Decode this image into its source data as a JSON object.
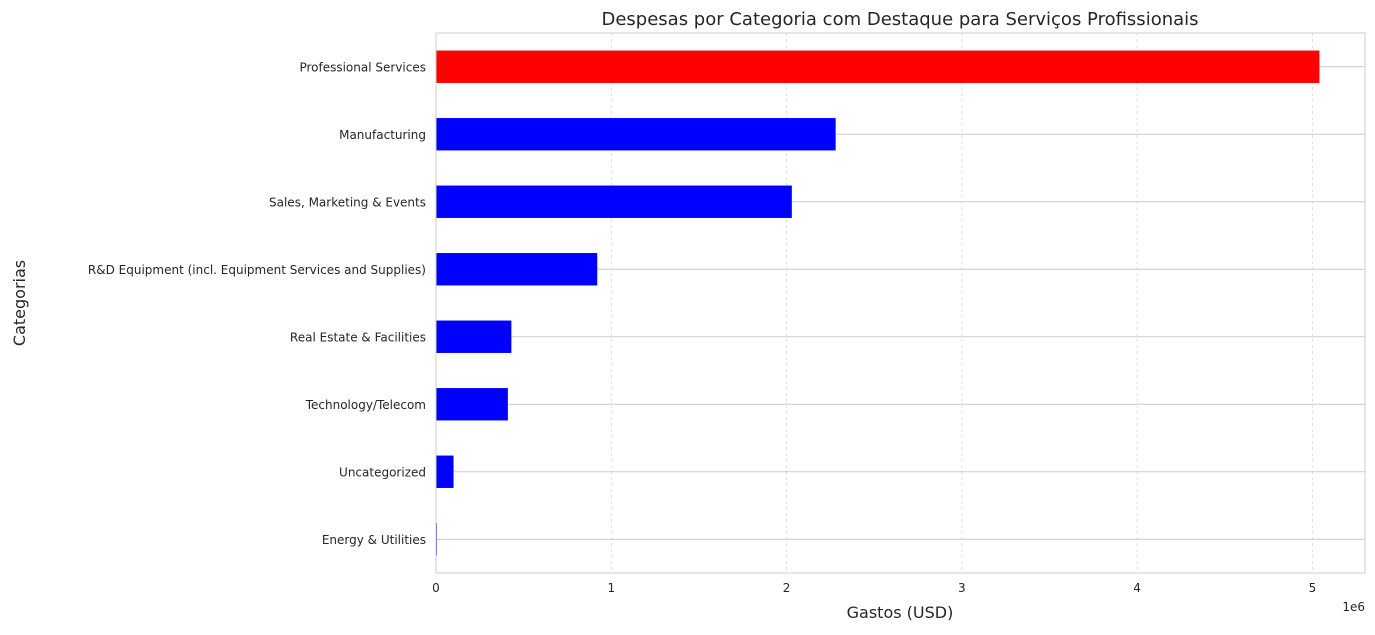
{
  "chart_data": {
    "type": "bar",
    "orientation": "horizontal",
    "title": "Despesas por Categoria com Destaque para Serviços Profissionais",
    "xlabel": "Gastos (USD)",
    "ylabel": "Categorias",
    "x_offset_label": "1e6",
    "xlim": [
      0,
      5.3
    ],
    "x_ticks": [
      0,
      1,
      2,
      3,
      4,
      5
    ],
    "x_tick_labels": [
      "0",
      "1",
      "2",
      "3",
      "4",
      "5"
    ],
    "grid": true,
    "legend": "none",
    "categories": [
      "Professional Services",
      "Manufacturing",
      "Sales, Marketing & Events",
      "R&D Equipment (incl. Equipment Services and Supplies)",
      "Real Estate & Facilities",
      "Technology/Telecom",
      "Uncategorized",
      "Energy & Utilities"
    ],
    "values": [
      5.04,
      2.28,
      2.03,
      0.92,
      0.43,
      0.41,
      0.1,
      0.005
    ],
    "colors": [
      "#ff0000",
      "#0000ff",
      "#0000ff",
      "#0000ff",
      "#0000ff",
      "#0000ff",
      "#0000ff",
      "#0000ff"
    ]
  }
}
